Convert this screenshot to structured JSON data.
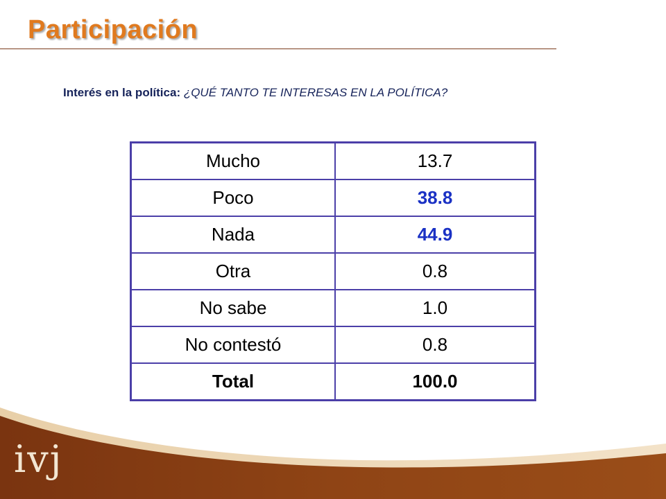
{
  "slide": {
    "title": "Participación",
    "subtitle_lead": "Interés en la política: ",
    "subtitle_question": "¿QUÉ TANTO TE INTERESAS EN LA POLÍTICA?",
    "logo_text": "ivj"
  },
  "table": {
    "rows": [
      {
        "label": "Mucho",
        "value": "13.7"
      },
      {
        "label": "Poco",
        "value": "38.8"
      },
      {
        "label": "Nada",
        "value": "44.9"
      },
      {
        "label": "Otra",
        "value": "0.8"
      },
      {
        "label": "No sabe",
        "value": "1.0"
      },
      {
        "label": "No contestó",
        "value": "0.8"
      },
      {
        "label": "Total",
        "value": "100.0"
      }
    ]
  },
  "colors": {
    "title": "#e07a1f",
    "table_border": "#4b3fa8",
    "highlight_value": "#1a31c4",
    "footer_brown": "#8b3e12"
  }
}
